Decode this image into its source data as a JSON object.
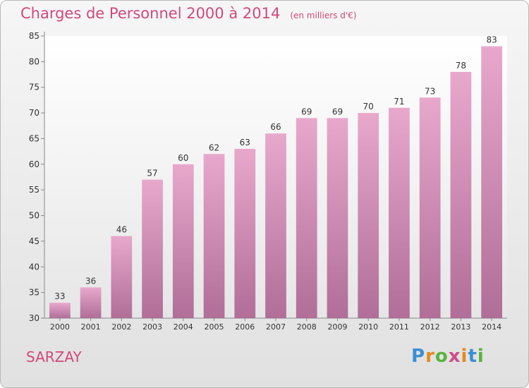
{
  "title": "Charges de Personnel 2000 à 2014",
  "unit_label": "(en milliers d'€)",
  "place": "SARZAY",
  "logo": {
    "text": "Proxiti"
  },
  "chart_data": {
    "type": "bar",
    "categories": [
      "2000",
      "2001",
      "2002",
      "2003",
      "2004",
      "2005",
      "2006",
      "2007",
      "2008",
      "2009",
      "2010",
      "2011",
      "2012",
      "2013",
      "2014"
    ],
    "values": [
      33,
      36,
      46,
      57,
      60,
      62,
      63,
      66,
      69,
      69,
      70,
      71,
      73,
      78,
      83
    ],
    "ylim": [
      30,
      85
    ],
    "yticks": [
      30,
      35,
      40,
      45,
      50,
      55,
      60,
      65,
      70,
      75,
      80,
      85
    ],
    "grid": false,
    "bar_color": "#d98db5"
  }
}
